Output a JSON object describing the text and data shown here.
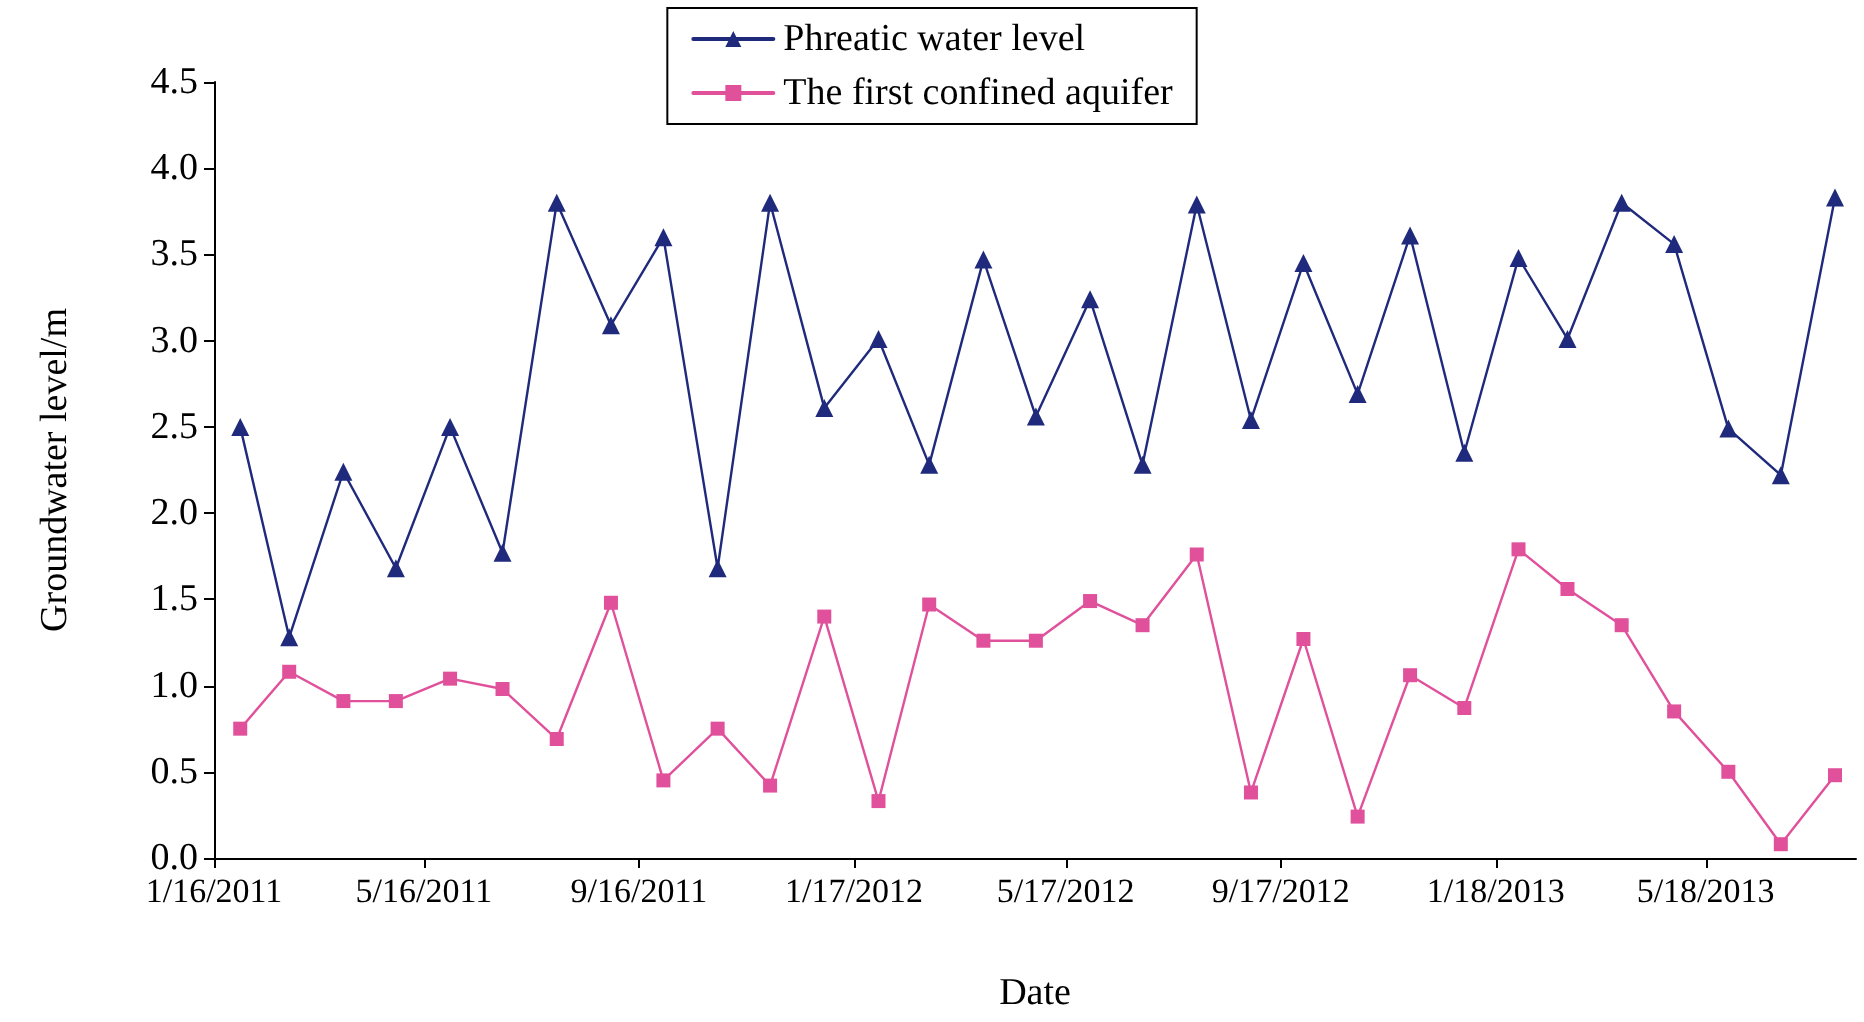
{
  "chart_data": {
    "type": "line",
    "xlabel": "Date",
    "ylabel": "Groundwater level/m",
    "x": [
      "2011-01-31",
      "2011-02-28",
      "2011-03-31",
      "2011-04-30",
      "2011-05-31",
      "2011-06-30",
      "2011-07-31",
      "2011-08-31",
      "2011-09-30",
      "2011-10-31",
      "2011-11-30",
      "2011-12-31",
      "2012-01-31",
      "2012-02-29",
      "2012-03-31",
      "2012-04-30",
      "2012-05-31",
      "2012-06-30",
      "2012-07-31",
      "2012-08-31",
      "2012-09-30",
      "2012-10-31",
      "2012-11-30",
      "2012-12-31",
      "2013-01-31",
      "2013-02-28",
      "2013-03-31",
      "2013-04-30",
      "2013-05-31",
      "2013-06-30",
      "2013-07-31"
    ],
    "series": [
      {
        "name": "Phreatic water level",
        "color": "#1f2a7c",
        "marker": "triangle",
        "values": [
          2.5,
          1.28,
          2.24,
          1.68,
          2.5,
          1.77,
          3.8,
          3.09,
          3.6,
          1.68,
          3.8,
          2.61,
          3.01,
          2.28,
          3.47,
          2.56,
          3.24,
          2.28,
          3.79,
          2.54,
          3.45,
          2.69,
          3.61,
          2.35,
          3.48,
          3.01,
          3.8,
          3.56,
          2.49,
          2.22,
          3.83
        ]
      },
      {
        "name": "The first confined aquifer",
        "color": "#e0509b",
        "marker": "square",
        "values": [
          0.75,
          1.08,
          0.91,
          0.91,
          1.04,
          0.98,
          0.69,
          1.48,
          0.45,
          0.75,
          0.42,
          1.4,
          0.33,
          1.47,
          1.26,
          1.26,
          1.49,
          1.35,
          1.76,
          0.38,
          1.27,
          0.24,
          1.06,
          0.87,
          1.79,
          1.56,
          1.35,
          0.85,
          0.5,
          0.08,
          0.48
        ]
      }
    ],
    "xlim": [
      "2011-01-16",
      "2013-08-12"
    ],
    "xticks": [
      {
        "value": "2011-01-16",
        "label": "1/16/2011"
      },
      {
        "value": "2011-05-16",
        "label": "5/16/2011"
      },
      {
        "value": "2011-09-16",
        "label": "9/16/2011"
      },
      {
        "value": "2012-01-17",
        "label": "1/17/2012"
      },
      {
        "value": "2012-05-17",
        "label": "5/17/2012"
      },
      {
        "value": "2012-09-17",
        "label": "9/17/2012"
      },
      {
        "value": "2013-01-18",
        "label": "1/18/2013"
      },
      {
        "value": "2013-05-18",
        "label": "5/18/2013"
      }
    ],
    "ylim": [
      0,
      4.5
    ],
    "yticks": [
      {
        "value": 0,
        "label": "0.0"
      },
      {
        "value": 0.5,
        "label": "0.5"
      },
      {
        "value": 1,
        "label": "1.0"
      },
      {
        "value": 1.5,
        "label": "1.5"
      },
      {
        "value": 2,
        "label": "2.0"
      },
      {
        "value": 2.5,
        "label": "2.5"
      },
      {
        "value": 3,
        "label": "3.0"
      },
      {
        "value": 3.5,
        "label": "3.5"
      },
      {
        "value": 4,
        "label": "4.0"
      },
      {
        "value": 4.5,
        "label": "4.5"
      }
    ],
    "grid": false,
    "legend": "top",
    "line_style": "solid"
  }
}
